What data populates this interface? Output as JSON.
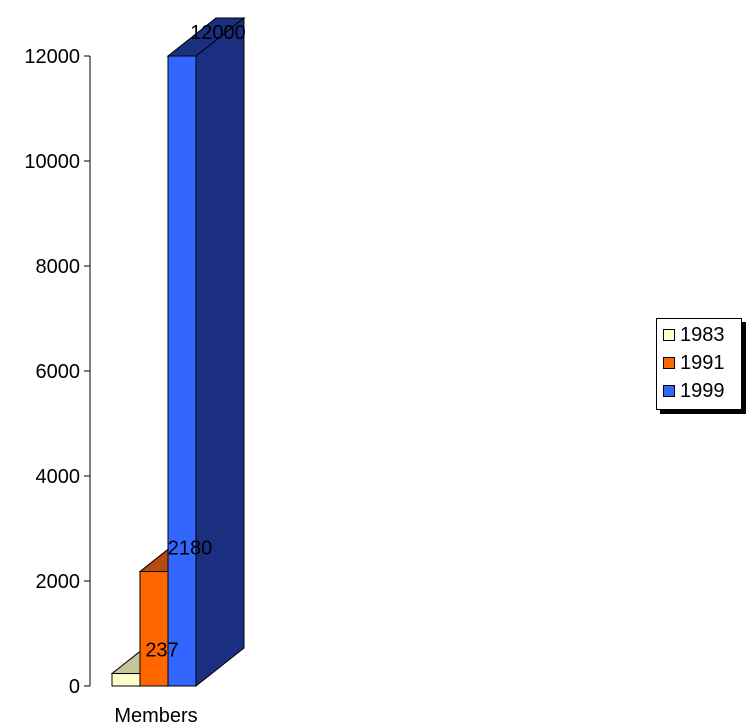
{
  "chart_data": {
    "type": "bar",
    "categories": [
      "Members"
    ],
    "series": [
      {
        "name": "1983",
        "values": [
          237
        ],
        "color": "#ffffcc",
        "side_color": "#c8c49a"
      },
      {
        "name": "1991",
        "values": [
          2180
        ],
        "color": "#ff6600",
        "side_color": "#b84a10"
      },
      {
        "name": "1999",
        "values": [
          12000
        ],
        "color": "#3366ff",
        "side_color": "#1a2f80"
      }
    ],
    "ylim": [
      0,
      12000
    ],
    "yticks": [
      "0",
      "2000",
      "4000",
      "6000",
      "8000",
      "10000",
      "12000"
    ],
    "data_labels": [
      "237",
      "2180",
      "12000"
    ],
    "legend_position": "right",
    "style": "3d-clustered-column"
  }
}
